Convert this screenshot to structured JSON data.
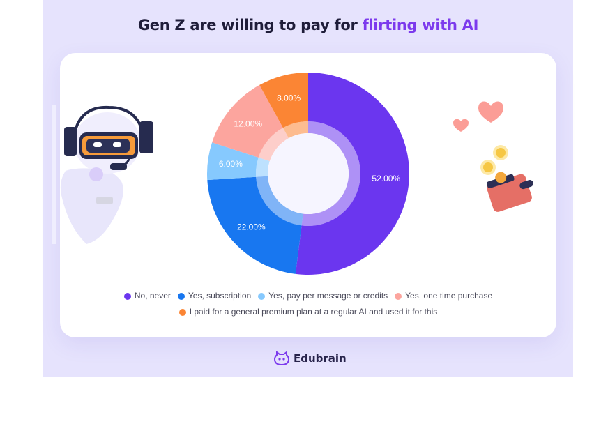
{
  "title": {
    "prefix": "Gen Z are willing to pay for ",
    "highlight": "flirting with AI"
  },
  "colors": {
    "background": "#e6e3fd",
    "highlight": "#7c3aed"
  },
  "chart_data": {
    "type": "pie",
    "variant": "donut",
    "categories": [
      "No, never",
      "Yes, subscription",
      "Yes, pay per message or credits",
      "Yes, one time purchase",
      "I paid for a general premium plan at a regular AI and used it for this"
    ],
    "values": [
      52,
      22,
      6,
      12,
      8
    ],
    "labels": [
      "52.00%",
      "22.00%",
      "6.00%",
      "12.00%",
      "8.00%"
    ],
    "colors": [
      "#6b36ef",
      "#1877f0",
      "#86c9fe",
      "#fca59e",
      "#fb8534"
    ],
    "legend_position": "bottom"
  },
  "brand": {
    "name": "Edubrain",
    "icon": "edubrain-logo-icon"
  },
  "decorations": {
    "left": "robot-headset-icon",
    "right": [
      "heart-icon",
      "heart-icon",
      "coin-icon",
      "coin-icon",
      "wallet-icon"
    ]
  }
}
